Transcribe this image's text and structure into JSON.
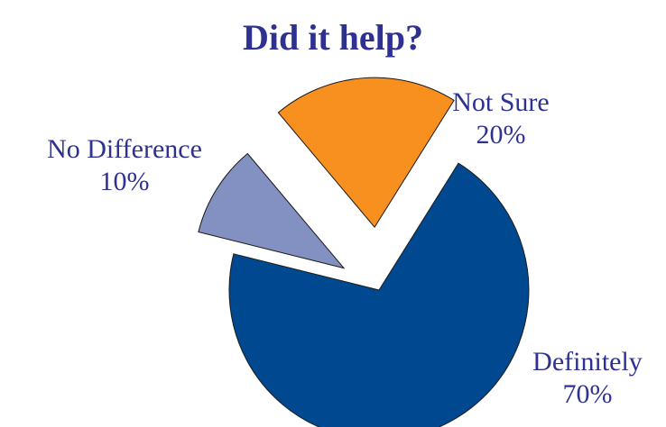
{
  "chart_data": {
    "type": "pie",
    "title": "Did it help?",
    "slices": [
      {
        "label": "Definitely",
        "percent_label": "70%",
        "value": 70,
        "color": "#004990",
        "exploded": false
      },
      {
        "label": "No Difference",
        "percent_label": "10%",
        "value": 10,
        "color": "#8390c2",
        "exploded": true
      },
      {
        "label": "Not Sure",
        "percent_label": "20%",
        "value": 20,
        "color": "#f7901e",
        "exploded": true
      }
    ],
    "start_angle_deg": 32,
    "direction": "clockwise"
  }
}
